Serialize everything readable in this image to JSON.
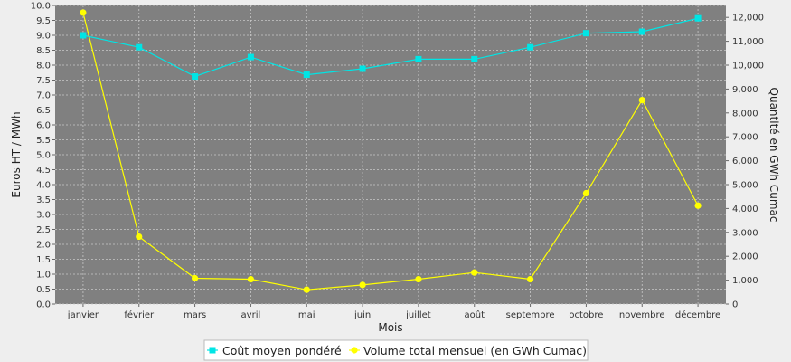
{
  "chart_data": {
    "type": "line",
    "title": "",
    "xlabel": "Mois",
    "ylabel_left": "Euros HT / MWh",
    "ylabel_right": "Quantité en GWh Cumac",
    "categories": [
      "janvier",
      "février",
      "mars",
      "avril",
      "mai",
      "juin",
      "juillet",
      "août",
      "septembre",
      "octobre",
      "novembre",
      "décembre"
    ],
    "y_left": {
      "min": 0,
      "max": 10,
      "step": 0.5,
      "tick_labels": [
        "0.0",
        "0.5",
        "1.0",
        "1.5",
        "2.0",
        "2.5",
        "3.0",
        "3.5",
        "4.0",
        "4.5",
        "5.0",
        "5.5",
        "6.0",
        "6.5",
        "7.0",
        "7.5",
        "8.0",
        "8.5",
        "9.0",
        "9.5",
        "10.0"
      ]
    },
    "y_right": {
      "min": 0,
      "max": 12500,
      "step": 1000,
      "tick_labels": [
        "0",
        "1,000",
        "2,000",
        "3,000",
        "4,000",
        "5,000",
        "6,000",
        "7,000",
        "8,000",
        "9,000",
        "10,000",
        "11,000",
        "12,000"
      ]
    },
    "grid": true,
    "legend": "bottom",
    "plot_background": "#808080",
    "series": [
      {
        "name": "Coût moyen pondéré",
        "axis": "left",
        "marker": "square",
        "color": "#00e5e5",
        "values": [
          9.0,
          8.6,
          7.62,
          8.27,
          7.68,
          7.88,
          8.2,
          8.2,
          8.6,
          9.07,
          9.12,
          9.57
        ]
      },
      {
        "name": "Volume total mensuel (en GWh Cumac)",
        "axis": "right",
        "marker": "circle",
        "color": "#ffff00",
        "values": [
          12200,
          2820,
          1080,
          1040,
          600,
          800,
          1040,
          1320,
          1040,
          4640,
          8540,
          4120
        ]
      }
    ]
  }
}
